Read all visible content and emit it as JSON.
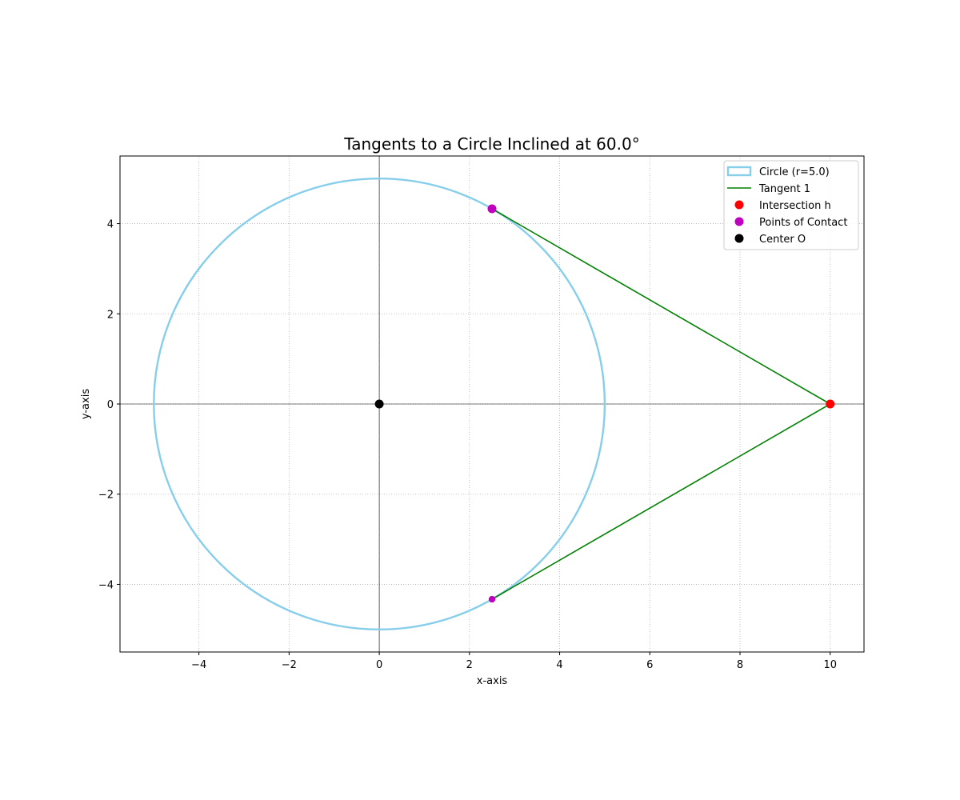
{
  "chart_data": {
    "type": "scatter",
    "title": "Tangents to a Circle Inclined at 60.0°",
    "xlabel": "x-axis",
    "ylabel": "y-axis",
    "xlim": [
      -5.75,
      10.75
    ],
    "ylim": [
      -5.5,
      5.5
    ],
    "xticks": [
      -4,
      -2,
      0,
      2,
      4,
      6,
      8,
      10
    ],
    "yticks": [
      -4,
      -2,
      0,
      2,
      4
    ],
    "grid": true,
    "legend_position": "top-right",
    "circle": {
      "center": [
        0,
        0
      ],
      "radius": 5.0,
      "color": "#87ceeb"
    },
    "tangent_lines": [
      {
        "from": [
          2.5,
          4.33
        ],
        "to": [
          10.0,
          0.0
        ]
      },
      {
        "from": [
          10.0,
          0.0
        ],
        "to": [
          2.5,
          -4.33
        ]
      }
    ],
    "intersection": {
      "x": 10.0,
      "y": 0.0,
      "color": "#ff0000"
    },
    "contact_points": [
      {
        "x": 2.5,
        "y": 4.33,
        "size": "large"
      },
      {
        "x": 2.5,
        "y": -4.33,
        "size": "small"
      }
    ],
    "center_point": {
      "x": 0.0,
      "y": 0.0,
      "color": "#000000"
    },
    "colors": {
      "tangent": "#008000",
      "contact": "#bf00bf",
      "axes": "#000000",
      "grid": "#b0b0b0"
    },
    "legend": [
      {
        "label": "Circle (r=5.0)",
        "kind": "patch",
        "color": "#87ceeb"
      },
      {
        "label": "Tangent 1",
        "kind": "line",
        "color": "#008000"
      },
      {
        "label": "Intersection h",
        "kind": "marker",
        "color": "#ff0000"
      },
      {
        "label": "Points of Contact",
        "kind": "marker",
        "color": "#bf00bf"
      },
      {
        "label": "Center O",
        "kind": "marker",
        "color": "#000000"
      }
    ]
  }
}
